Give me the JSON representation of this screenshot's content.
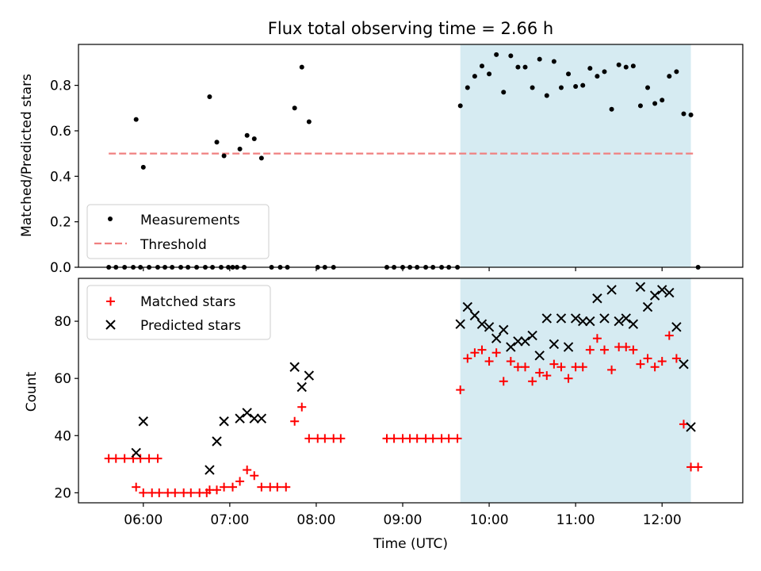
{
  "chart_data": [
    {
      "type": "scatter",
      "title": "Flux total observing time = 2.66 h",
      "xlabel": "",
      "ylabel": "Matched/Predicted stars",
      "xlim": [
        "05:15",
        "12:56"
      ],
      "ylim": [
        0,
        0.98
      ],
      "yticks": [
        "0.0",
        "0.2",
        "0.4",
        "0.6",
        "0.8"
      ],
      "grid": false,
      "legend_position": "lower-left",
      "highlight_span": [
        "09:40",
        "12:20"
      ],
      "threshold": {
        "name": "Threshold",
        "value": 0.5,
        "x_from": "05:36",
        "x_to": "12:23",
        "color": "#f08080"
      },
      "series": [
        {
          "name": "Measurements",
          "color": "#000000",
          "points": [
            [
              "05:36",
              0
            ],
            [
              "05:41",
              0
            ],
            [
              "05:47",
              0
            ],
            [
              "05:53",
              0
            ],
            [
              "05:58",
              0
            ],
            [
              "06:04",
              0
            ],
            [
              "06:10",
              0
            ],
            [
              "05:55",
              0.65
            ],
            [
              "06:00",
              0.44
            ],
            [
              "06:15",
              0
            ],
            [
              "06:20",
              0
            ],
            [
              "06:26",
              0
            ],
            [
              "06:31",
              0
            ],
            [
              "06:37",
              0
            ],
            [
              "06:43",
              0
            ],
            [
              "06:48",
              0
            ],
            [
              "06:54",
              0
            ],
            [
              "06:59",
              0
            ],
            [
              "07:05",
              0
            ],
            [
              "07:10",
              0
            ],
            [
              "06:46",
              0.75
            ],
            [
              "06:51",
              0.55
            ],
            [
              "06:56",
              0.49
            ],
            [
              "07:02",
              0
            ],
            [
              "07:07",
              0.52
            ],
            [
              "07:12",
              0.58
            ],
            [
              "07:17",
              0.565
            ],
            [
              "07:22",
              0.48
            ],
            [
              "07:29",
              0
            ],
            [
              "07:35",
              0
            ],
            [
              "07:40",
              0
            ],
            [
              "07:45",
              0.7
            ],
            [
              "07:50",
              0.88
            ],
            [
              "07:55",
              0.64
            ],
            [
              "08:01",
              0
            ],
            [
              "08:06",
              0
            ],
            [
              "08:12",
              0
            ],
            [
              "08:49",
              0
            ],
            [
              "08:54",
              0
            ],
            [
              "09:00",
              0
            ],
            [
              "09:05",
              0
            ],
            [
              "09:10",
              0
            ],
            [
              "09:16",
              0
            ],
            [
              "09:21",
              0
            ],
            [
              "09:27",
              0
            ],
            [
              "09:32",
              0
            ],
            [
              "09:38",
              0
            ],
            [
              "09:40",
              0.71
            ],
            [
              "09:45",
              0.79
            ],
            [
              "09:50",
              0.84
            ],
            [
              "09:55",
              0.885
            ],
            [
              "10:00",
              0.85
            ],
            [
              "10:05",
              0.935
            ],
            [
              "10:10",
              0.77
            ],
            [
              "10:15",
              0.93
            ],
            [
              "10:20",
              0.88
            ],
            [
              "10:25",
              0.88
            ],
            [
              "10:30",
              0.79
            ],
            [
              "10:35",
              0.915
            ],
            [
              "10:40",
              0.755
            ],
            [
              "10:45",
              0.905
            ],
            [
              "10:50",
              0.79
            ],
            [
              "10:55",
              0.85
            ],
            [
              "11:00",
              0.795
            ],
            [
              "11:05",
              0.8
            ],
            [
              "11:10",
              0.875
            ],
            [
              "11:15",
              0.84
            ],
            [
              "11:20",
              0.86
            ],
            [
              "11:25",
              0.695
            ],
            [
              "11:30",
              0.89
            ],
            [
              "11:35",
              0.88
            ],
            [
              "11:40",
              0.885
            ],
            [
              "11:45",
              0.71
            ],
            [
              "11:50",
              0.79
            ],
            [
              "11:55",
              0.72
            ],
            [
              "12:00",
              0.735
            ],
            [
              "12:05",
              0.84
            ],
            [
              "12:10",
              0.86
            ],
            [
              "12:15",
              0.675
            ],
            [
              "12:20",
              0.67
            ],
            [
              "12:25",
              0
            ]
          ]
        }
      ]
    },
    {
      "type": "scatter",
      "title": "",
      "xlabel": "Time (UTC)",
      "ylabel": "Count",
      "xlim": [
        "05:15",
        "12:56"
      ],
      "ylim": [
        16.5,
        95
      ],
      "xticks": [
        "06:00",
        "07:00",
        "08:00",
        "09:00",
        "10:00",
        "11:00",
        "12:00"
      ],
      "yticks": [
        "20",
        "40",
        "60",
        "80"
      ],
      "grid": false,
      "legend_position": "top-left",
      "highlight_span": [
        "09:40",
        "12:20"
      ],
      "series": [
        {
          "name": "Matched stars",
          "color": "#ff0000",
          "marker": "plus",
          "points": [
            [
              "05:36",
              32
            ],
            [
              "05:41",
              32
            ],
            [
              "05:47",
              32
            ],
            [
              "05:53",
              32
            ],
            [
              "05:58",
              32
            ],
            [
              "06:04",
              32
            ],
            [
              "06:10",
              32
            ],
            [
              "05:55",
              22
            ],
            [
              "06:00",
              20
            ],
            [
              "06:06",
              20
            ],
            [
              "06:11",
              20
            ],
            [
              "06:17",
              20
            ],
            [
              "06:22",
              20
            ],
            [
              "06:28",
              20
            ],
            [
              "06:33",
              20
            ],
            [
              "06:39",
              20
            ],
            [
              "06:44",
              20
            ],
            [
              "06:46",
              21
            ],
            [
              "06:51",
              21
            ],
            [
              "06:56",
              22
            ],
            [
              "07:02",
              22
            ],
            [
              "07:07",
              24
            ],
            [
              "07:12",
              28
            ],
            [
              "07:17",
              26
            ],
            [
              "07:22",
              22
            ],
            [
              "07:28",
              22
            ],
            [
              "07:33",
              22
            ],
            [
              "07:39",
              22
            ],
            [
              "07:45",
              45
            ],
            [
              "07:50",
              50
            ],
            [
              "07:55",
              39
            ],
            [
              "08:01",
              39
            ],
            [
              "08:06",
              39
            ],
            [
              "08:12",
              39
            ],
            [
              "08:17",
              39
            ],
            [
              "08:49",
              39
            ],
            [
              "08:54",
              39
            ],
            [
              "09:00",
              39
            ],
            [
              "09:05",
              39
            ],
            [
              "09:10",
              39
            ],
            [
              "09:16",
              39
            ],
            [
              "09:21",
              39
            ],
            [
              "09:27",
              39
            ],
            [
              "09:32",
              39
            ],
            [
              "09:38",
              39
            ],
            [
              "09:40",
              56
            ],
            [
              "09:45",
              67
            ],
            [
              "09:50",
              69
            ],
            [
              "09:55",
              70
            ],
            [
              "10:00",
              66
            ],
            [
              "10:05",
              69
            ],
            [
              "10:10",
              59
            ],
            [
              "10:15",
              66
            ],
            [
              "10:20",
              64
            ],
            [
              "10:25",
              64
            ],
            [
              "10:30",
              59
            ],
            [
              "10:35",
              62
            ],
            [
              "10:40",
              61
            ],
            [
              "10:45",
              65
            ],
            [
              "10:50",
              64
            ],
            [
              "10:55",
              60
            ],
            [
              "11:00",
              64
            ],
            [
              "11:05",
              64
            ],
            [
              "11:10",
              70
            ],
            [
              "11:15",
              74
            ],
            [
              "11:20",
              70
            ],
            [
              "11:25",
              63
            ],
            [
              "11:30",
              71
            ],
            [
              "11:35",
              71
            ],
            [
              "11:40",
              70
            ],
            [
              "11:45",
              65
            ],
            [
              "11:50",
              67
            ],
            [
              "11:55",
              64
            ],
            [
              "12:00",
              66
            ],
            [
              "12:05",
              75
            ],
            [
              "12:10",
              67
            ],
            [
              "12:15",
              44
            ],
            [
              "12:20",
              29
            ],
            [
              "12:25",
              29
            ]
          ]
        },
        {
          "name": "Predicted stars",
          "color": "#000000",
          "marker": "x",
          "points": [
            [
              "05:55",
              34
            ],
            [
              "06:00",
              45
            ],
            [
              "06:46",
              28
            ],
            [
              "06:51",
              38
            ],
            [
              "06:56",
              45
            ],
            [
              "07:07",
              46
            ],
            [
              "07:12",
              48
            ],
            [
              "07:17",
              46
            ],
            [
              "07:22",
              46
            ],
            [
              "07:45",
              64
            ],
            [
              "07:50",
              57
            ],
            [
              "07:55",
              61
            ],
            [
              "09:40",
              79
            ],
            [
              "09:45",
              85
            ],
            [
              "09:50",
              82
            ],
            [
              "09:55",
              79
            ],
            [
              "10:00",
              78
            ],
            [
              "10:05",
              74
            ],
            [
              "10:10",
              77
            ],
            [
              "10:15",
              71
            ],
            [
              "10:20",
              73
            ],
            [
              "10:25",
              73
            ],
            [
              "10:30",
              75
            ],
            [
              "10:35",
              68
            ],
            [
              "10:40",
              81
            ],
            [
              "10:45",
              72
            ],
            [
              "10:50",
              81
            ],
            [
              "10:55",
              71
            ],
            [
              "11:00",
              81
            ],
            [
              "11:05",
              80
            ],
            [
              "11:10",
              80
            ],
            [
              "11:15",
              88
            ],
            [
              "11:20",
              81
            ],
            [
              "11:25",
              91
            ],
            [
              "11:30",
              80
            ],
            [
              "11:35",
              81
            ],
            [
              "11:40",
              79
            ],
            [
              "11:45",
              92
            ],
            [
              "11:50",
              85
            ],
            [
              "11:55",
              89
            ],
            [
              "12:00",
              91
            ],
            [
              "12:05",
              90
            ],
            [
              "12:10",
              78
            ],
            [
              "12:15",
              65
            ],
            [
              "12:20",
              43
            ]
          ]
        }
      ]
    }
  ]
}
